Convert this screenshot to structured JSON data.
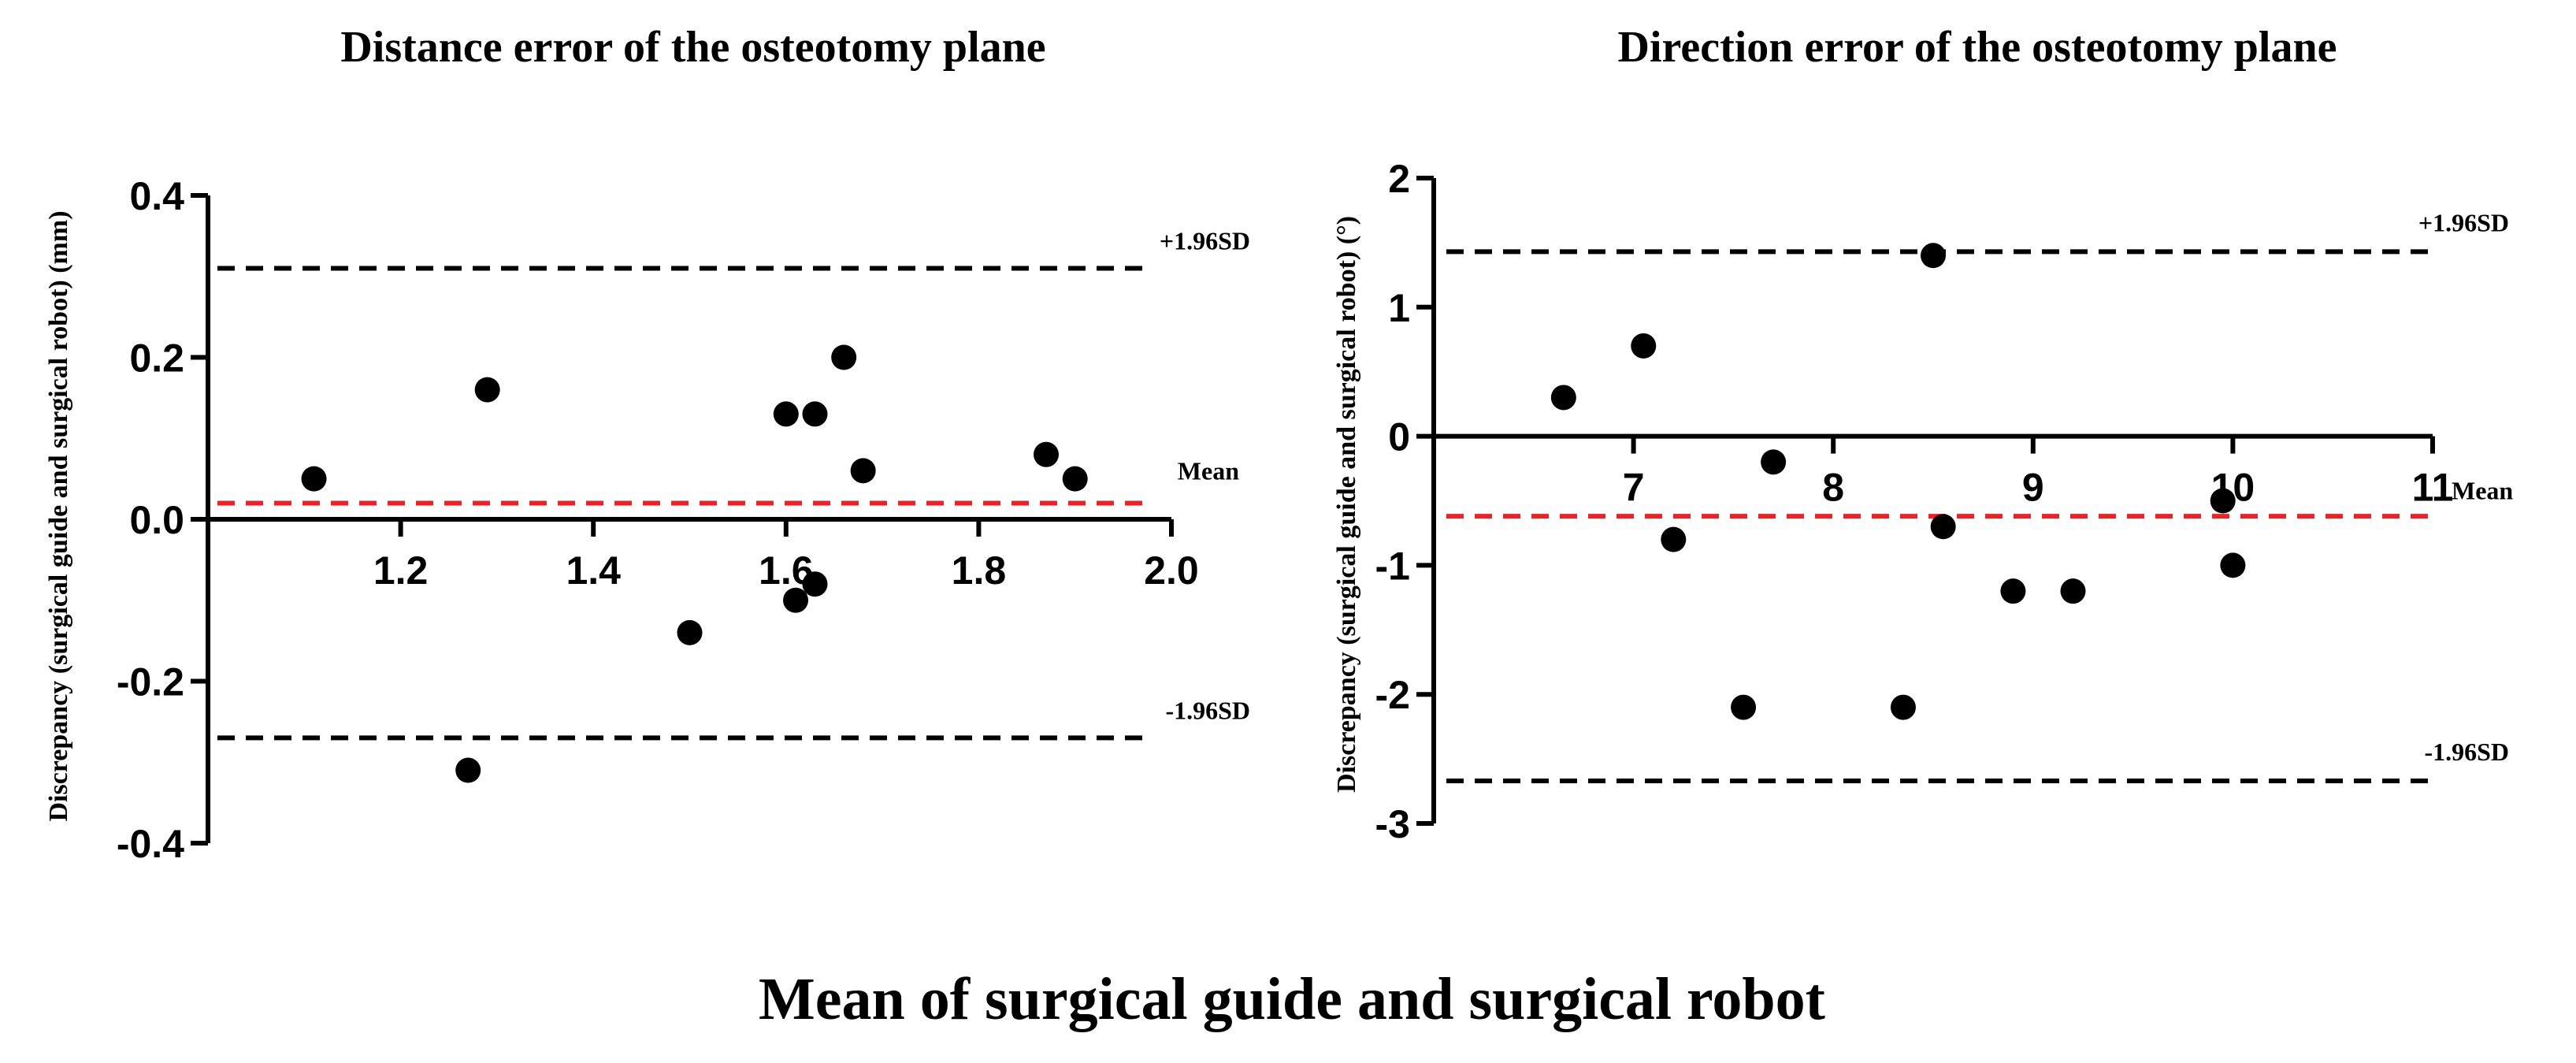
{
  "shared_xlabel": "Mean of surgical guide and surgical robot",
  "chart_data": [
    {
      "type": "scatter",
      "title": "Distance error of the osteotomy plane",
      "xlabel": "",
      "ylabel": "Discrepancy (surgical guide and surgical robot) (mm)",
      "xlim": [
        1.0,
        2.0
      ],
      "ylim": [
        -0.4,
        0.4
      ],
      "xticks": [
        1.2,
        1.4,
        1.6,
        1.8,
        2.0
      ],
      "xtick_labels": [
        "1.2",
        "1.4",
        "1.6",
        "1.8",
        "2.0"
      ],
      "yticks": [
        0.4,
        0.2,
        0.0,
        -0.2,
        -0.4
      ],
      "ytick_labels": [
        "0.4",
        "0.2",
        "0.0",
        "-0.2",
        "-0.4"
      ],
      "points": [
        {
          "x": 1.11,
          "y": 0.05
        },
        {
          "x": 1.29,
          "y": 0.16
        },
        {
          "x": 1.27,
          "y": -0.31
        },
        {
          "x": 1.5,
          "y": -0.14
        },
        {
          "x": 1.6,
          "y": 0.13
        },
        {
          "x": 1.63,
          "y": 0.13
        },
        {
          "x": 1.66,
          "y": 0.2
        },
        {
          "x": 1.68,
          "y": 0.06
        },
        {
          "x": 1.61,
          "y": -0.1
        },
        {
          "x": 1.63,
          "y": -0.08
        },
        {
          "x": 1.87,
          "y": 0.08
        },
        {
          "x": 1.9,
          "y": 0.05
        }
      ],
      "reference_lines": [
        {
          "label": "+1.96SD",
          "y": 0.31,
          "color": "#000000"
        },
        {
          "label": "Mean",
          "y": 0.02,
          "color": "#e8242a"
        },
        {
          "label": "-1.96SD",
          "y": -0.27,
          "color": "#000000"
        }
      ],
      "grid": false
    },
    {
      "type": "scatter",
      "title": "Direction error of the osteotomy plane",
      "xlabel": "",
      "ylabel": "Discrepancy (surgical guide and surgical robot) (°)",
      "xlim": [
        6.0,
        11.0
      ],
      "ylim": [
        -3,
        2
      ],
      "xticks": [
        7,
        8,
        9,
        10,
        11
      ],
      "xtick_labels": [
        "7",
        "8",
        "9",
        "10",
        "11"
      ],
      "yticks": [
        2,
        1,
        0,
        -1,
        -2,
        -3
      ],
      "ytick_labels": [
        "2",
        "1",
        "0",
        "-1",
        "-2",
        "-3"
      ],
      "points": [
        {
          "x": 6.65,
          "y": 0.3
        },
        {
          "x": 7.05,
          "y": 0.7
        },
        {
          "x": 7.2,
          "y": -0.8
        },
        {
          "x": 7.7,
          "y": -0.2
        },
        {
          "x": 7.55,
          "y": -2.1
        },
        {
          "x": 8.35,
          "y": -2.1
        },
        {
          "x": 8.5,
          "y": 1.4
        },
        {
          "x": 8.55,
          "y": -0.7
        },
        {
          "x": 8.9,
          "y": -1.2
        },
        {
          "x": 9.2,
          "y": -1.2
        },
        {
          "x": 9.95,
          "y": -0.5
        },
        {
          "x": 10.0,
          "y": -1.0
        }
      ],
      "reference_lines": [
        {
          "label": "+1.96SD",
          "y": 1.43,
          "color": "#000000"
        },
        {
          "label": "Mean",
          "y": -0.62,
          "color": "#e8242a"
        },
        {
          "label": "-1.96SD",
          "y": -2.67,
          "color": "#000000"
        }
      ],
      "grid": false
    }
  ]
}
